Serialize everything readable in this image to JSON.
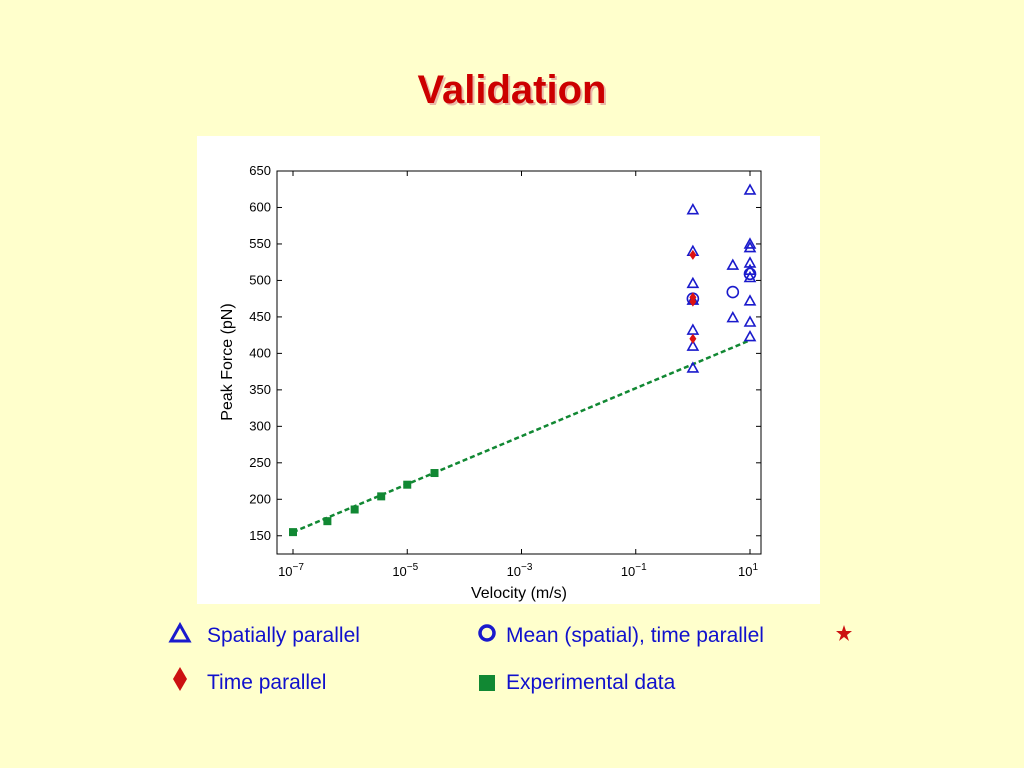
{
  "slide": {
    "title": "Validation"
  },
  "legend": {
    "spatially_parallel": "Spatially parallel",
    "mean_spatial_time_parallel": "Mean (spatial), time parallel",
    "time_parallel": "Time parallel",
    "experimental_data": "Experimental data"
  },
  "colors": {
    "background": "#ffffcc",
    "title": "#cc0000",
    "blue_markers": "#1a1acc",
    "red_markers": "#dd1111",
    "green_markers": "#118833"
  },
  "chart_data": {
    "type": "scatter",
    "xlabel": "Velocity (m/s)",
    "ylabel": "Peak Force (pN)",
    "x_scale": "log",
    "xlim": [
      1e-07,
      10
    ],
    "ylim": [
      125,
      650
    ],
    "x_ticks": [
      {
        "value": 1e-07,
        "base": "10",
        "exp": "−7"
      },
      {
        "value": 1e-05,
        "base": "10",
        "exp": "−5"
      },
      {
        "value": 0.001,
        "base": "10",
        "exp": "−3"
      },
      {
        "value": 0.1,
        "base": "10",
        "exp": "−1"
      },
      {
        "value": 10,
        "base": "10",
        "exp": "1"
      }
    ],
    "y_ticks": [
      150,
      200,
      250,
      300,
      350,
      400,
      450,
      500,
      550,
      600,
      650
    ],
    "grid": false,
    "series": [
      {
        "name": "Spatially parallel",
        "marker": "triangle",
        "color": "#1a1acc",
        "points": [
          {
            "x": 1,
            "y": 597
          },
          {
            "x": 1,
            "y": 540
          },
          {
            "x": 1,
            "y": 496
          },
          {
            "x": 1,
            "y": 473
          },
          {
            "x": 1,
            "y": 432
          },
          {
            "x": 1,
            "y": 410
          },
          {
            "x": 1,
            "y": 380
          },
          {
            "x": 5,
            "y": 521
          },
          {
            "x": 5,
            "y": 449
          },
          {
            "x": 10,
            "y": 624
          },
          {
            "x": 10,
            "y": 550
          },
          {
            "x": 10,
            "y": 545
          },
          {
            "x": 10,
            "y": 524
          },
          {
            "x": 10,
            "y": 514
          },
          {
            "x": 10,
            "y": 504
          },
          {
            "x": 10,
            "y": 472
          },
          {
            "x": 10,
            "y": 443
          },
          {
            "x": 10,
            "y": 423
          }
        ]
      },
      {
        "name": "Mean (spatial), time parallel",
        "marker": "circle",
        "color": "#1a1acc",
        "points": [
          {
            "x": 1,
            "y": 475
          },
          {
            "x": 5,
            "y": 484
          },
          {
            "x": 10,
            "y": 509
          }
        ]
      },
      {
        "name": "Time parallel",
        "marker": "diamond",
        "color": "#dd1111",
        "points": [
          {
            "x": 1,
            "y": 535
          },
          {
            "x": 1,
            "y": 477
          },
          {
            "x": 1,
            "y": 471
          },
          {
            "x": 1,
            "y": 420
          }
        ]
      },
      {
        "name": "Experimental data",
        "marker": "square",
        "color": "#118833",
        "points": [
          {
            "x": 1e-07,
            "y": 155
          },
          {
            "x": 4e-07,
            "y": 170
          },
          {
            "x": 1.2e-06,
            "y": 186
          },
          {
            "x": 3.5e-06,
            "y": 204
          },
          {
            "x": 1e-05,
            "y": 220
          },
          {
            "x": 3e-05,
            "y": 236
          }
        ]
      }
    ],
    "fit_line": {
      "style": "dashed",
      "color": "#118833",
      "from": {
        "x": 1e-07,
        "y": 155
      },
      "to": {
        "x": 10,
        "y": 418
      }
    }
  }
}
